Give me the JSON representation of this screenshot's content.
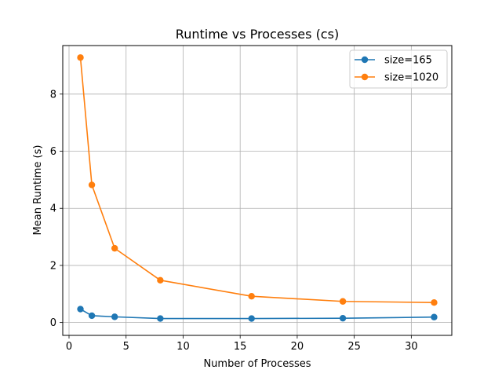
{
  "chart_data": {
    "type": "line",
    "title": "Runtime vs Processes (cs)",
    "xlabel": "Number of Processes",
    "ylabel": "Mean Runtime (s)",
    "xlim": [
      -0.55,
      33.55
    ],
    "ylim": [
      -0.45,
      9.7
    ],
    "xticks": [
      0,
      5,
      10,
      15,
      20,
      25,
      30
    ],
    "yticks": [
      0,
      2,
      4,
      6,
      8
    ],
    "grid": true,
    "legend_position": "top-right",
    "series": [
      {
        "name": "size=165",
        "color": "#1f77b4",
        "x": [
          1,
          2,
          4,
          8,
          16,
          24,
          32
        ],
        "y": [
          0.47,
          0.24,
          0.2,
          0.14,
          0.14,
          0.15,
          0.19
        ]
      },
      {
        "name": "size=1020",
        "color": "#ff7f0e",
        "x": [
          1,
          2,
          4,
          8,
          16,
          24,
          32
        ],
        "y": [
          9.28,
          4.82,
          2.6,
          1.48,
          0.92,
          0.74,
          0.7
        ]
      }
    ]
  }
}
